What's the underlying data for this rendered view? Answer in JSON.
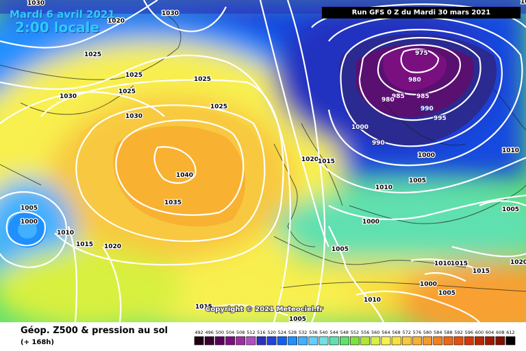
{
  "header": {
    "date": "Mardi 6 avril 2021",
    "time": "2:00 locale",
    "run": "Run GFS 0 Z du Mardi 30 mars 2021"
  },
  "footer": {
    "title": "Géop. Z500 & pression au sol",
    "subtitle": "(+ 168h)",
    "copyright": "Copyright © 2021 Meteociel.fr"
  },
  "legend": {
    "values": [
      "492",
      "496",
      "500",
      "504",
      "508",
      "512",
      "516",
      "520",
      "524",
      "528",
      "532",
      "536",
      "540",
      "544",
      "548",
      "552",
      "556",
      "560",
      "564",
      "568",
      "572",
      "576",
      "580",
      "584",
      "588",
      "592",
      "596",
      "600",
      "604",
      "608",
      "612"
    ],
    "colors": [
      "#200010",
      "#3a0030",
      "#58005a",
      "#7a1080",
      "#9a30a0",
      "#b050c0",
      "#2a30c0",
      "#2040e0",
      "#1060f0",
      "#2090ff",
      "#40b0ff",
      "#60d0ff",
      "#70e0e0",
      "#60e0b0",
      "#60e070",
      "#80e040",
      "#b0e830",
      "#d8f040",
      "#f8f050",
      "#f8e040",
      "#f8c840",
      "#f8b030",
      "#f89828",
      "#f08020",
      "#e86818",
      "#e05010",
      "#d03808",
      "#b82800",
      "#a01800",
      "#801000",
      "#000000"
    ]
  },
  "pressure_labels": [
    {
      "text": "1030"
    },
    {
      "text": "1030"
    },
    {
      "text": "1020"
    },
    {
      "text": "1025"
    },
    {
      "text": "1025"
    },
    {
      "text": "1025"
    },
    {
      "text": "1025"
    },
    {
      "text": "1030"
    },
    {
      "text": "1025"
    },
    {
      "text": "1030"
    },
    {
      "text": "1040"
    },
    {
      "text": "1035"
    },
    {
      "text": "1005"
    },
    {
      "text": "1000"
    },
    {
      "text": "1010"
    },
    {
      "text": "1015"
    },
    {
      "text": "1020"
    },
    {
      "text": "975"
    },
    {
      "text": "980"
    },
    {
      "text": "985"
    },
    {
      "text": "985"
    },
    {
      "text": "980"
    },
    {
      "text": "990"
    },
    {
      "text": "995"
    },
    {
      "text": "1000"
    },
    {
      "text": "990"
    },
    {
      "text": "1020"
    },
    {
      "text": "1015"
    },
    {
      "text": "1000"
    },
    {
      "text": "1010"
    },
    {
      "text": "1005"
    },
    {
      "text": "1010"
    },
    {
      "text": "1005"
    },
    {
      "text": "1000"
    },
    {
      "text": "1005"
    },
    {
      "text": "1015"
    },
    {
      "text": "1010"
    },
    {
      "text": "1000"
    },
    {
      "text": "1005"
    },
    {
      "text": "1010"
    },
    {
      "text": "1005"
    },
    {
      "text": "1020"
    },
    {
      "text": "1015"
    },
    {
      "text": "1015"
    },
    {
      "text": "1010"
    }
  ]
}
